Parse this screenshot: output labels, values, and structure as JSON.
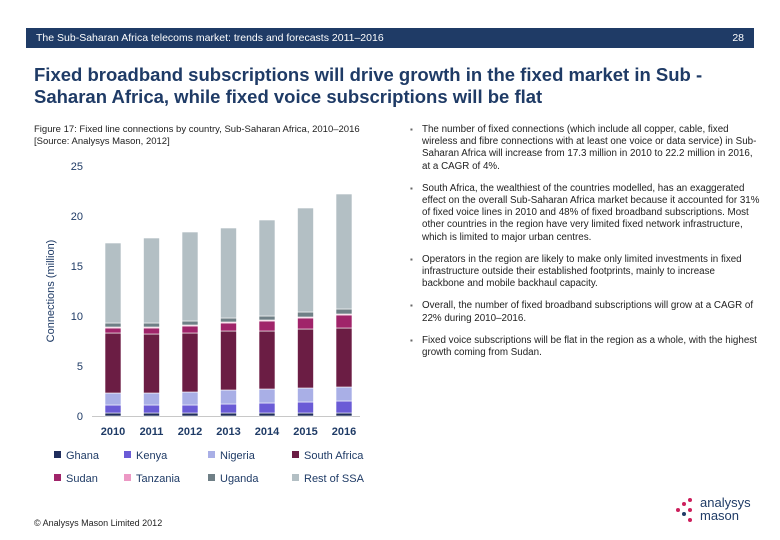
{
  "header": {
    "title": "The Sub-Saharan Africa telecoms market: trends and forecasts 2011–2016",
    "page": "28"
  },
  "title": "Fixed broadband subscriptions will drive growth in the fixed market in Sub -Saharan Africa, while fixed voice subscriptions will be flat",
  "figure_caption": "Figure 17: Fixed line connections by country, Sub-Saharan Africa, 2010–2016 [Source: Analysys Mason, 2012]",
  "bullets": [
    "The number of fixed connections (which include all copper, cable, fixed wireless and fibre connections with at least one voice or data service) in Sub-Saharan Africa will increase from 17.3 million in 2010 to 22.2 million in 2016, at a CAGR of 4%.",
    "South Africa, the wealthiest of the countries modelled, has an exaggerated effect on the overall Sub-Saharan Africa market because it accounted for 31% of fixed voice lines in 2010 and 48% of fixed broadband subscriptions. Most other countries in the region have very limited fixed network infrastructure, which is limited to major urban centres.",
    "Operators in the region are likely to make only limited investments in fixed infrastructure outside their established footprints, mainly to increase backbone and mobile backhaul capacity.",
    "Overall, the number of fixed broadband subscriptions will grow at a CAGR of 22% during 2010–2016.",
    "Fixed voice subscriptions will be flat in the region as a whole, with the highest growth coming from Sudan."
  ],
  "footer": "© Analysys Mason Limited 2012",
  "logo": {
    "line1": "analysys",
    "line2": "mason"
  },
  "chart_data": {
    "type": "bar",
    "stacked": true,
    "categories": [
      "2010",
      "2011",
      "2012",
      "2013",
      "2014",
      "2015",
      "2016"
    ],
    "ylabel": "Connections (million)",
    "ylim": [
      0,
      25
    ],
    "yticks": [
      0,
      5,
      10,
      15,
      20,
      25
    ],
    "grid": false,
    "legend": "bottom",
    "series": [
      {
        "name": "Ghana",
        "color": "#1f2d5c",
        "values": [
          0.3,
          0.3,
          0.3,
          0.3,
          0.3,
          0.3,
          0.3
        ]
      },
      {
        "name": "Kenya",
        "color": "#6a5bd6",
        "values": [
          0.8,
          0.8,
          0.8,
          0.9,
          1.0,
          1.1,
          1.2
        ]
      },
      {
        "name": "Nigeria",
        "color": "#a9afe6",
        "values": [
          1.2,
          1.2,
          1.3,
          1.4,
          1.4,
          1.4,
          1.4
        ]
      },
      {
        "name": "South Africa",
        "color": "#6b1d44",
        "values": [
          6.0,
          5.9,
          5.9,
          5.9,
          5.8,
          5.9,
          5.9
        ]
      },
      {
        "name": "Sudan",
        "color": "#a0246a",
        "values": [
          0.5,
          0.6,
          0.7,
          0.8,
          1.0,
          1.1,
          1.3
        ]
      },
      {
        "name": "Tanzania",
        "color": "#ec98c4",
        "values": [
          0.1,
          0.1,
          0.1,
          0.1,
          0.1,
          0.1,
          0.1
        ]
      },
      {
        "name": "Uganda",
        "color": "#6f7f86",
        "values": [
          0.4,
          0.4,
          0.4,
          0.4,
          0.4,
          0.5,
          0.5
        ]
      },
      {
        "name": "Rest of SSA",
        "color": "#b3bfc4",
        "values": [
          8.0,
          8.5,
          8.9,
          9.0,
          9.6,
          10.4,
          11.5
        ]
      }
    ]
  }
}
